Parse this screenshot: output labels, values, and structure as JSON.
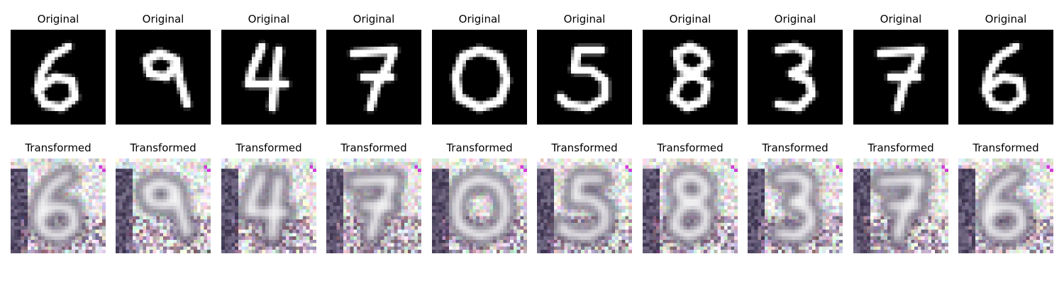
{
  "rows": [
    {
      "row_id": "original",
      "label": "Original",
      "style": "grayscale-digit",
      "colors": {
        "background": "#000000",
        "stroke": "#ffffff"
      },
      "digits": [
        "6",
        "9",
        "4",
        "7",
        "0",
        "5",
        "8",
        "3",
        "7",
        "6"
      ]
    },
    {
      "row_id": "transformed",
      "label": "Transformed",
      "style": "noisy-color-digit",
      "colors": {
        "background": "#e9e6ee",
        "stroke": "#f7f7f7",
        "dark": "#3a2f4a",
        "accent": "#d33ad8"
      },
      "digits": [
        "6",
        "9",
        "4",
        "7",
        "0",
        "5",
        "8",
        "3",
        "7",
        "6"
      ]
    }
  ]
}
